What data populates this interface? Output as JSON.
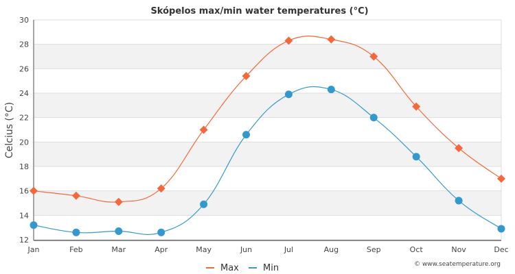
{
  "chart_data": {
    "type": "line",
    "title": "Skópelos max/min water temperatures (°C)",
    "xlabel": "",
    "ylabel": "Celcius (°C)",
    "categories": [
      "Jan",
      "Feb",
      "Mar",
      "Apr",
      "May",
      "Jun",
      "Jul",
      "Aug",
      "Sep",
      "Oct",
      "Nov",
      "Dec"
    ],
    "ylim": [
      12,
      30
    ],
    "yticks": [
      12,
      14,
      16,
      18,
      20,
      22,
      24,
      26,
      28,
      30
    ],
    "grid": true,
    "legend_position": "bottom-center",
    "series": [
      {
        "name": "Max",
        "color": "#f4683c",
        "marker": "diamond",
        "values": [
          16.0,
          15.6,
          15.1,
          16.2,
          21.0,
          25.4,
          28.3,
          28.4,
          27.0,
          22.9,
          19.5,
          17.0
        ]
      },
      {
        "name": "Min",
        "color": "#3399cc",
        "marker": "circle",
        "values": [
          13.2,
          12.6,
          12.7,
          12.6,
          14.9,
          20.6,
          23.9,
          24.3,
          22.0,
          18.8,
          15.2,
          12.9
        ]
      }
    ],
    "credit": "© www.seatemperature.org"
  }
}
